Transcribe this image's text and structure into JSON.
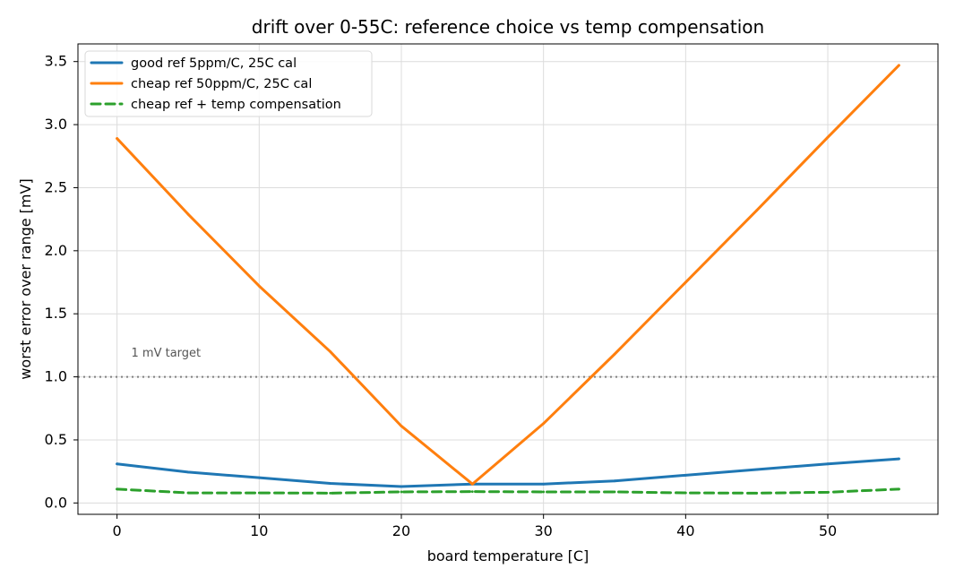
{
  "chart_data": {
    "type": "line",
    "title": "drift over 0-55C: reference choice vs temp compensation",
    "xlabel": "board temperature [C]",
    "ylabel": "worst error over range [mV]",
    "xlim": [
      -2.75,
      57.75
    ],
    "ylim": [
      -0.09,
      3.64
    ],
    "xticks": [
      0,
      10,
      20,
      30,
      40,
      50
    ],
    "yticks": [
      0.0,
      0.5,
      1.0,
      1.5,
      2.0,
      2.5,
      3.0,
      3.5
    ],
    "xtick_labels": [
      "0",
      "10",
      "20",
      "30",
      "40",
      "50"
    ],
    "ytick_labels": [
      "0.0",
      "0.5",
      "1.0",
      "1.5",
      "2.0",
      "2.5",
      "3.0",
      "3.5"
    ],
    "grid": true,
    "legend_position": "top-left",
    "x": [
      0,
      5,
      10,
      15,
      20,
      25,
      30,
      35,
      40,
      45,
      50,
      55
    ],
    "series": [
      {
        "name": "good ref 5ppm/C, 25C cal",
        "color": "#1f77b4",
        "style": "solid",
        "values": [
          0.31,
          0.245,
          0.2,
          0.155,
          0.13,
          0.15,
          0.15,
          0.175,
          0.22,
          0.265,
          0.31,
          0.35
        ]
      },
      {
        "name": "cheap ref 50ppm/C, 25C cal",
        "color": "#ff7f0e",
        "style": "solid",
        "values": [
          2.89,
          2.29,
          1.72,
          1.2,
          0.61,
          0.15,
          0.63,
          1.18,
          1.75,
          2.32,
          2.9,
          3.47
        ]
      },
      {
        "name": "cheap ref + temp compensation",
        "color": "#2ca02c",
        "style": "dashed",
        "values": [
          0.11,
          0.08,
          0.08,
          0.078,
          0.088,
          0.09,
          0.088,
          0.088,
          0.08,
          0.078,
          0.085,
          0.11
        ]
      }
    ],
    "reference_line": {
      "y": 1.0,
      "color": "#808080",
      "style": "dotted"
    },
    "annotations": [
      {
        "text": "1 mV target",
        "x": 1.0,
        "y": 1.16
      }
    ]
  }
}
